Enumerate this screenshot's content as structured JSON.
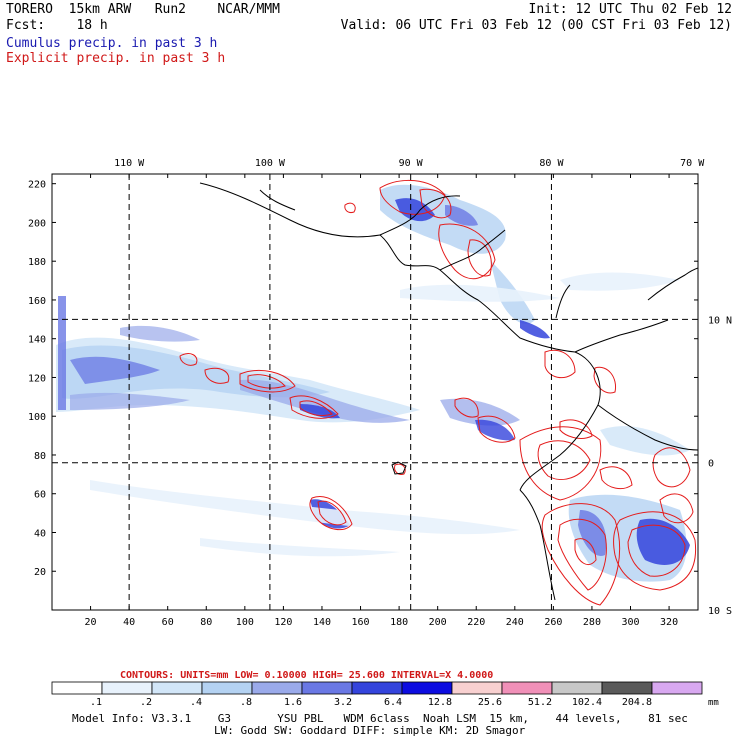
{
  "header": {
    "line1_left": "TORERO  15km ARW   Run2    NCAR/MMM",
    "line1_right": "Init: 12 UTC Thu 02 Feb 12",
    "line2_left": "Fcst:    18 h",
    "line2_right": "Valid: 06 UTC Fri 03 Feb 12 (00 CST Fri 03 Feb 12)",
    "field1": "Cumulus precip. in past 3 h",
    "field2": "Explicit precip. in past 3 h"
  },
  "colors": {
    "field1": "#1a1ab0",
    "field2": "#d01818",
    "coast": "#000000",
    "contour": "#e41c1c",
    "grid": "#000000"
  },
  "chart_data": {
    "type": "heatmap",
    "x_ticks": [
      20,
      40,
      60,
      80,
      100,
      120,
      140,
      160,
      180,
      200,
      220,
      240,
      260,
      280,
      300,
      320
    ],
    "y_ticks": [
      20,
      40,
      60,
      80,
      100,
      120,
      140,
      160,
      180,
      200,
      220
    ],
    "xlim": [
      0,
      335
    ],
    "ylim": [
      0,
      225
    ],
    "lon_labels": [
      {
        "text": "110 W",
        "x": 40
      },
      {
        "text": "100 W",
        "x": 113
      },
      {
        "text": "90 W",
        "x": 186
      },
      {
        "text": "80 W",
        "x": 259
      },
      {
        "text": "70 W",
        "x": 332
      }
    ],
    "lat_labels": [
      {
        "text": "10 N",
        "y": 150
      },
      {
        "text": "0",
        "y": 76
      },
      {
        "text": "10 S",
        "y": 0
      }
    ],
    "gridlines": {
      "lon_x": [
        40,
        113,
        186,
        259
      ],
      "lat_y": [
        150,
        76
      ]
    },
    "contours": {
      "units": "CONTOURS:  UNITS=mm  LOW= 0.10000      HIGH=  25.600      INTERVAL=X  4.0000"
    },
    "colorbar": {
      "colors": [
        "#ffffff",
        "#e8f2fc",
        "#d2e6f8",
        "#b4d2f2",
        "#9aaaea",
        "#6a78e4",
        "#3444dc",
        "#0c0ce0",
        "#f8d0d0",
        "#f090b8",
        "#c8c8c8",
        "#5a5a5a",
        "#d8a8f0"
      ],
      "labels": [
        ".1",
        ".2",
        ".4",
        ".8",
        "1.6",
        "3.2",
        "6.4",
        "12.8",
        "25.6",
        "51.2",
        "102.4",
        "204.8"
      ],
      "units": "mm"
    }
  },
  "footer": {
    "line1": "Model Info: V3.3.1    G3       YSU PBL   WDM 6class  Noah LSM  15 km,    44 levels,    81 sec",
    "line2": "LW: Godd SW: Goddard DIFF: simple KM: 2D Smagor"
  }
}
